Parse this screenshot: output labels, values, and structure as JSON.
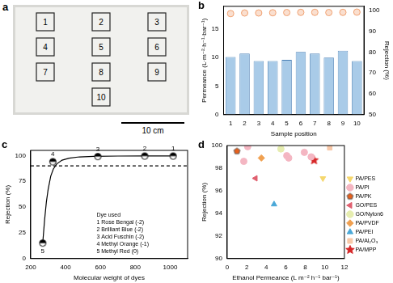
{
  "diagram": {
    "panel_label": "a",
    "squares": [
      1,
      2,
      3,
      4,
      5,
      6,
      7,
      8,
      9,
      10
    ],
    "scale_bar": "10 cm"
  },
  "chart_data": [
    {
      "panel_label": "b",
      "type": "bar",
      "x_label": "Sample position",
      "y_label": "Permeance (L·m⁻²·h⁻¹·bar⁻¹)",
      "y2_label": "Rejection (%)",
      "categories": [
        "1",
        "2",
        "3",
        "4",
        "5",
        "6",
        "7",
        "8",
        "9",
        "10"
      ],
      "series": [
        {
          "type": "bar",
          "color": "#a9cbe8",
          "values": [
            10.1,
            10.7,
            9.4,
            9.4,
            9.6,
            11.0,
            10.7,
            10.0,
            11.2,
            9.4
          ]
        },
        {
          "type": "scatter",
          "axis": "y2",
          "marker": "circle",
          "color": "#f0a070",
          "values": [
            98.5,
            98.8,
            98.8,
            98.9,
            99.0,
            99.1,
            99.1,
            99.0,
            99.1,
            99.2
          ]
        }
      ],
      "ylim": [
        0,
        19
      ],
      "yticks": [
        0,
        5,
        10,
        15
      ],
      "y2lim": [
        50,
        102
      ],
      "y2ticks": [
        50,
        60,
        70,
        80,
        90,
        100
      ],
      "grid": false
    },
    {
      "panel_label": "c",
      "type": "scatter",
      "x_label": "Molecular weight of dyes",
      "y_label": "Rejection (%)",
      "series": [
        {
          "type": "scatter",
          "marker": "half_filled_circle",
          "color": "#000000",
          "x": [
            269,
            327,
            585,
            854,
            1017
          ],
          "values": [
            15,
            94,
            99,
            99.5,
            99.5
          ],
          "point_labels": [
            "5",
            "4",
            "3",
            "2",
            "1"
          ]
        },
        {
          "type": "line",
          "line_style": "solid",
          "color": "#000000",
          "x": [
            269,
            280,
            290,
            300,
            315,
            330,
            350,
            380,
            420,
            480,
            560,
            700,
            850,
            1017
          ],
          "values": [
            15,
            38,
            55,
            67,
            80,
            87,
            92,
            95.5,
            97.5,
            98.7,
            99.2,
            99.5,
            99.6,
            99.6
          ]
        },
        {
          "type": "line",
          "line_style": "dashed",
          "color": "#000000",
          "x": [
            200,
            1100
          ],
          "values": [
            90,
            90
          ]
        }
      ],
      "annotations": [
        "Dye used",
        "1 Rose Bengal (-2)",
        "2 Brilliant Blue (-2)",
        "3 Acid Fuschin (-2)",
        "4 Methyl Orange (-1)",
        "5 Methyl Red (0)"
      ],
      "xlim": [
        200,
        1100
      ],
      "xticks": [
        200,
        400,
        600,
        800,
        1000
      ],
      "ylim": [
        0,
        105
      ],
      "yticks": [
        0,
        25,
        50,
        75,
        100
      ],
      "grid": false
    },
    {
      "panel_label": "d",
      "type": "scatter",
      "x_label": "Ethanol Permeance (L m⁻² h⁻¹ bar⁻¹)",
      "y_label": "Rejection (%)",
      "series": [
        {
          "name": "PA/PES",
          "marker": "triangle_down",
          "color": "#f5d76e",
          "x": [
            9.8
          ],
          "values": [
            97.1
          ]
        },
        {
          "name": "PA/PI",
          "marker": "circle",
          "color": "#f4b6c2",
          "x": [
            1.7,
            2.1,
            6.1,
            6.3,
            7.9,
            8.6
          ],
          "values": [
            98.6,
            99.9,
            99.1,
            98.9,
            99.4,
            99.0
          ]
        },
        {
          "name": "PA/PK",
          "marker": "pentagon",
          "color": "#e8601c",
          "x": [
            1.0
          ],
          "values": [
            99.5
          ]
        },
        {
          "name": "GO/PES",
          "marker": "triangle_left",
          "color": "#e06070",
          "x": [
            2.9
          ],
          "values": [
            97.1
          ]
        },
        {
          "name": "GO/Nylon6",
          "marker": "circle",
          "color": "#e6edb0",
          "x": [
            5.5
          ],
          "values": [
            99.7
          ]
        },
        {
          "name": "PA/PVDF",
          "marker": "diamond",
          "color": "#f0a050",
          "x": [
            3.5
          ],
          "values": [
            98.9
          ]
        },
        {
          "name": "PA/PEI",
          "marker": "triangle",
          "color": "#4aa8d8",
          "x": [
            4.8
          ],
          "values": [
            94.8
          ]
        },
        {
          "name": "PA/Al₂O₃",
          "marker": "square",
          "color": "#f8c8a8",
          "x": [
            10.5
          ],
          "values": [
            99.8
          ]
        },
        {
          "name": "PA/MPP",
          "marker": "star",
          "color": "#d62728",
          "x": [
            8.9
          ],
          "values": [
            98.7
          ]
        }
      ],
      "xlim": [
        0,
        12
      ],
      "xticks": [
        0,
        2,
        4,
        6,
        8,
        10,
        12
      ],
      "ylim": [
        90,
        100
      ],
      "yticks": [
        90,
        92,
        94,
        96,
        98,
        100
      ],
      "legend": "right",
      "grid": false
    }
  ]
}
